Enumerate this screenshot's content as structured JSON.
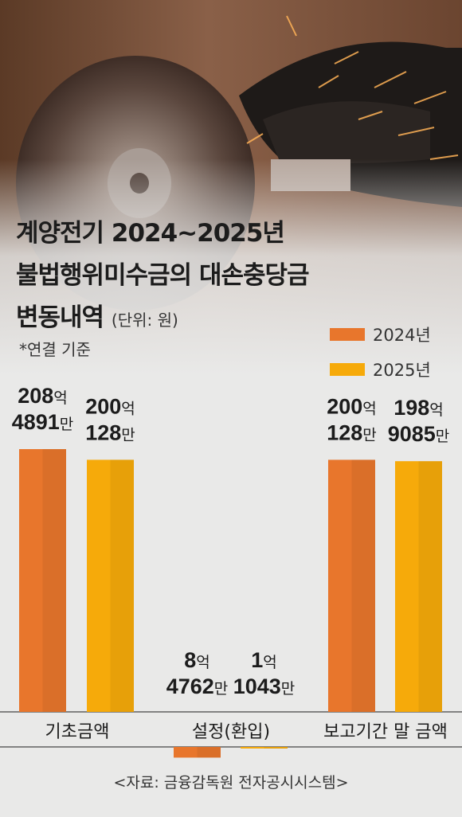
{
  "title": {
    "line1": "계양전기 2024~2025년",
    "line2": "불법행위미수금의 대손충당금",
    "line3": "변동내역",
    "unit": "(단위: 원)"
  },
  "note": "*연결 기준",
  "legend": [
    {
      "label": "2024년",
      "color": "#e8762c"
    },
    {
      "label": "2025년",
      "color": "#f6aa0a"
    }
  ],
  "source": "<자료: 금융감독원 전자공시시스템>",
  "chart_data": {
    "type": "bar",
    "categories": [
      "기초금액",
      "설정(환입)",
      "보고기간 말 금액"
    ],
    "series": [
      {
        "name": "2024년",
        "color": "#e8762c",
        "values": [
          20848910000,
          -847620000,
          20001280000
        ],
        "labels": [
          [
            "208억",
            "4891만"
          ],
          [
            "8억",
            "4762만"
          ],
          [
            "200억",
            "128만"
          ]
        ]
      },
      {
        "name": "2025년",
        "color": "#f6aa0a",
        "values": [
          20001280000,
          -110430000,
          19890850000
        ],
        "labels": [
          [
            "200억",
            "128만"
          ],
          [
            "1억",
            "1043만"
          ],
          [
            "198억",
            "9085만"
          ]
        ]
      }
    ]
  }
}
